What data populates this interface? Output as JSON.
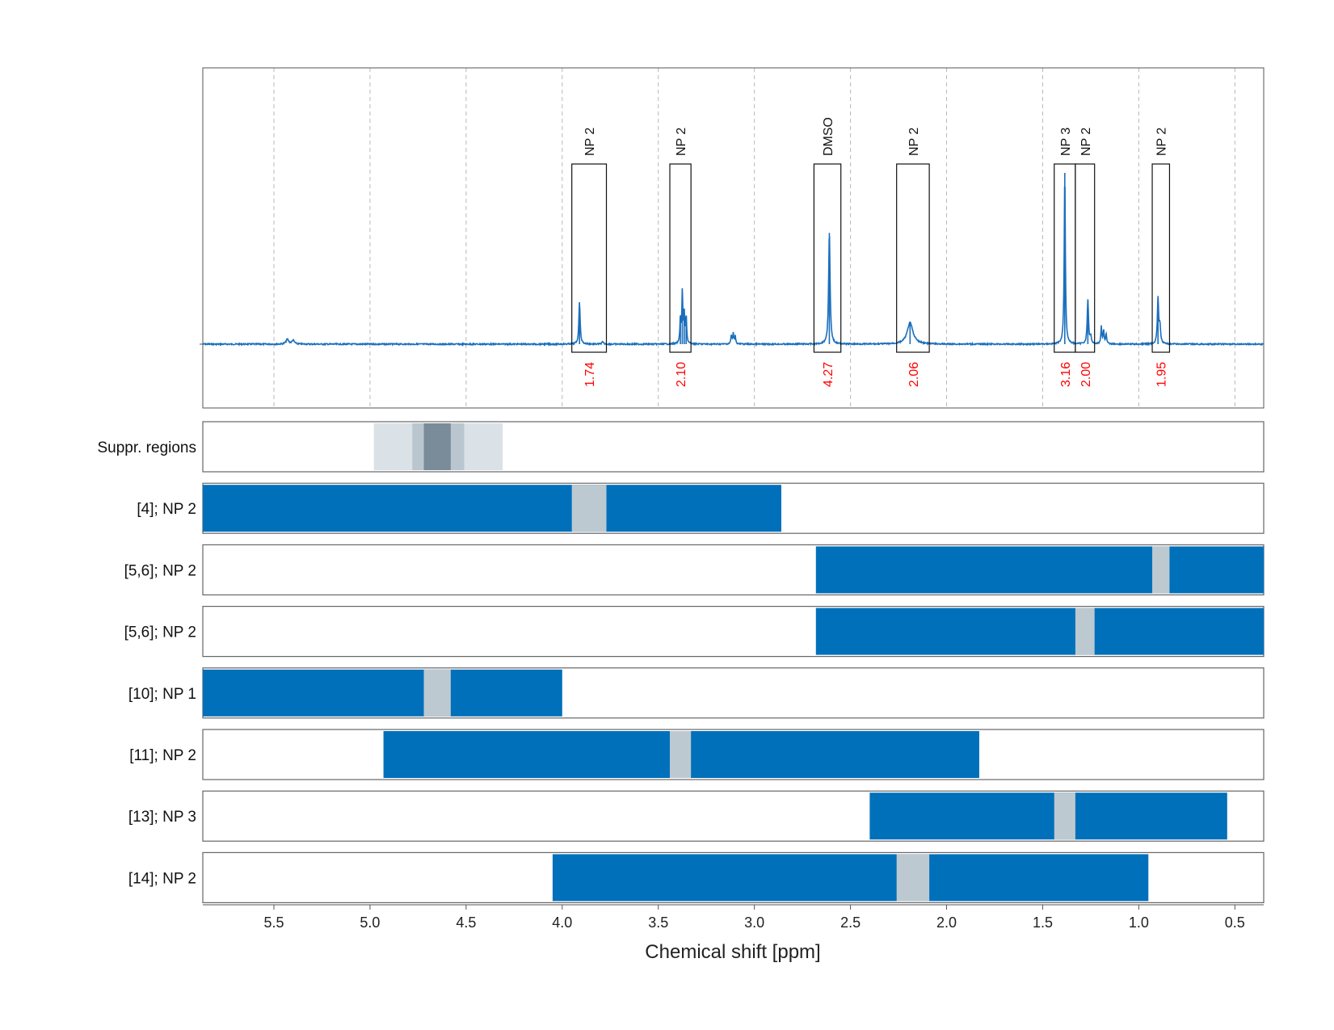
{
  "chart_data": {
    "type": "nmr-spectrum-with-interval-tracks",
    "xlabel": "Chemical shift [ppm]",
    "xlim": [
      5.87,
      0.35
    ],
    "x_reversed": true,
    "x_ticks": [
      5.5,
      5.0,
      4.5,
      4.0,
      3.5,
      3.0,
      2.5,
      2.0,
      1.5,
      1.0,
      0.5
    ],
    "x_tick_labels": [
      "5.5",
      "5.0",
      "4.5",
      "4.0",
      "3.5",
      "3.0",
      "2.5",
      "2.0",
      "1.5",
      "1.0",
      "0.5"
    ],
    "grid": "vertical dashed",
    "colors": {
      "spectrum": "#1a6fbd",
      "track_bar": "#0070bb",
      "peak_window": "#bdc9d0",
      "ratio_label": "#ff0000",
      "suppr_light": "#dae1e7",
      "suppr_mid": "#b9c6cf",
      "suppr_dark": "#7a8c99"
    },
    "spectrum_peaks": [
      {
        "ppm": 5.43,
        "height": 0.028,
        "width": 0.008
      },
      {
        "ppm": 5.4,
        "height": 0.022,
        "width": 0.008
      },
      {
        "ppm": 3.91,
        "height": 0.245,
        "width": 0.004
      },
      {
        "ppm": 3.79,
        "height": 0.012,
        "width": 0.005
      },
      {
        "ppm": 3.385,
        "height": 0.15,
        "width": 0.003
      },
      {
        "ppm": 3.375,
        "height": 0.3,
        "width": 0.003
      },
      {
        "ppm": 3.365,
        "height": 0.17,
        "width": 0.003
      },
      {
        "ppm": 3.355,
        "height": 0.16,
        "width": 0.003
      },
      {
        "ppm": 3.12,
        "height": 0.05,
        "width": 0.003
      },
      {
        "ppm": 3.11,
        "height": 0.06,
        "width": 0.003
      },
      {
        "ppm": 3.1,
        "height": 0.05,
        "width": 0.003
      },
      {
        "ppm": 2.61,
        "height": 0.65,
        "width": 0.0045
      },
      {
        "ppm": 2.19,
        "height": 0.125,
        "width": 0.018
      },
      {
        "ppm": 1.385,
        "height": 1.0,
        "width": 0.0035
      },
      {
        "ppm": 1.265,
        "height": 0.26,
        "width": 0.004
      },
      {
        "ppm": 1.25,
        "height": 0.04,
        "width": 0.004
      },
      {
        "ppm": 1.195,
        "height": 0.1,
        "width": 0.003
      },
      {
        "ppm": 1.183,
        "height": 0.08,
        "width": 0.003
      },
      {
        "ppm": 1.17,
        "height": 0.06,
        "width": 0.003
      },
      {
        "ppm": 0.9,
        "height": 0.265,
        "width": 0.004
      },
      {
        "ppm": 0.89,
        "height": 0.1,
        "width": 0.004
      }
    ],
    "annotations": [
      {
        "label": "NP 2",
        "ratio": "1.74",
        "range": [
          3.95,
          3.77
        ]
      },
      {
        "label": "NP 2",
        "ratio": "2.10",
        "range": [
          3.44,
          3.33
        ]
      },
      {
        "label": "DMSO",
        "ratio": "4.27",
        "range": [
          2.69,
          2.55
        ]
      },
      {
        "label": "NP 2",
        "ratio": "2.06",
        "range": [
          2.26,
          2.09
        ]
      },
      {
        "label": "NP 3",
        "ratio": "3.16",
        "range": [
          1.44,
          1.33
        ]
      },
      {
        "label": "NP 2",
        "ratio": "2.00",
        "range": [
          1.33,
          1.23
        ]
      },
      {
        "label": "NP 2",
        "ratio": "1.95",
        "range": [
          0.93,
          0.84
        ]
      }
    ],
    "suppr_track": {
      "label": "Suppr. regions",
      "regions": [
        {
          "range": [
            4.98,
            4.31
          ],
          "shade": "light"
        },
        {
          "range": [
            4.78,
            4.51
          ],
          "shade": "mid"
        },
        {
          "range": [
            4.72,
            4.58
          ],
          "shade": "dark"
        }
      ]
    },
    "tracks": [
      {
        "label": "[4]; NP 2",
        "bar": [
          5.87,
          2.86
        ],
        "window": [
          3.95,
          3.77
        ]
      },
      {
        "label": "[5,6]; NP 2",
        "bar": [
          2.68,
          0.35
        ],
        "window": [
          0.93,
          0.84
        ]
      },
      {
        "label": "[5,6]; NP 2",
        "bar": [
          2.68,
          0.35
        ],
        "window": [
          1.33,
          1.23
        ]
      },
      {
        "label": "[10]; NP 1",
        "bar": [
          5.87,
          4.0
        ],
        "window": [
          4.72,
          4.58
        ]
      },
      {
        "label": "[11]; NP 2",
        "bar": [
          4.93,
          1.83
        ],
        "window": [
          3.44,
          3.33
        ]
      },
      {
        "label": "[13]; NP 3",
        "bar": [
          2.4,
          0.54
        ],
        "window": [
          1.44,
          1.33
        ]
      },
      {
        "label": "[14]; NP 2",
        "bar": [
          4.05,
          0.95
        ],
        "window": [
          2.26,
          2.09
        ]
      }
    ]
  }
}
